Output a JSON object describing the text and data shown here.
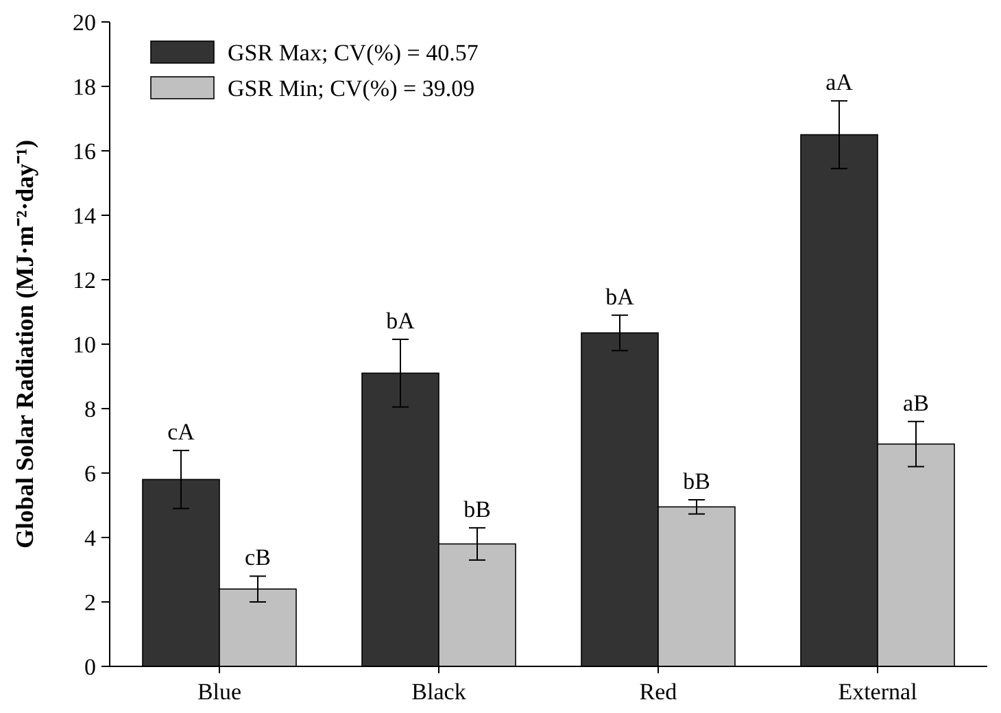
{
  "chart_data": {
    "type": "bar",
    "ylabel": "Global Solar Radiation (MJ·m⁻²·day⁻¹)",
    "categories": [
      "Blue",
      "Black",
      "Red",
      "External"
    ],
    "series": [
      {
        "name": "GSR Max; CV(%) = 40.57",
        "color": "#333333",
        "values": [
          5.8,
          9.1,
          10.35,
          16.5
        ],
        "errors": [
          0.9,
          1.05,
          0.55,
          1.05
        ]
      },
      {
        "name": "GSR Min; CV(%) = 39.09",
        "color": "#c0c0c0",
        "values": [
          2.4,
          3.8,
          4.95,
          6.9
        ],
        "errors": [
          0.4,
          0.5,
          0.22,
          0.7
        ]
      }
    ],
    "ylim": [
      0,
      20
    ],
    "yticks": [
      0,
      2,
      4,
      6,
      8,
      10,
      12,
      14,
      16,
      18,
      20
    ],
    "legend": "top left",
    "annotations": [
      "cA",
      "cB",
      "bA",
      "bB",
      "bA",
      "bB",
      "aA",
      "aB"
    ]
  }
}
